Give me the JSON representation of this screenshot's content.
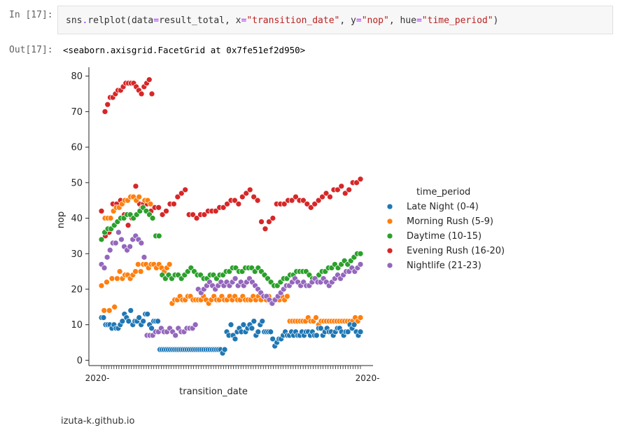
{
  "notebook": {
    "in_prompt": "In [17]:",
    "out_prompt": "Out[17]:",
    "code": {
      "fn_module": "sns",
      "fn_dot": ".",
      "fn_name": "relplot",
      "open_paren": "(",
      "arg1_name": "data",
      "eq": "=",
      "arg1_value": "result_total",
      "comma": ", ",
      "arg2_name": "x",
      "arg2_value": "\"transition_date\"",
      "arg3_name": "y",
      "arg3_value": "\"nop\"",
      "arg4_name": "hue",
      "arg4_value": "\"time_period\"",
      "close_paren": ")"
    },
    "output_text": "<seaborn.axisgrid.FacetGrid at 0x7fe51ef2d950>"
  },
  "attribution": "izuta-k.github.io",
  "chart_data": {
    "type": "scatter",
    "title": "",
    "xlabel": "transition_date",
    "ylabel": "nop",
    "ylim": [
      -1.5,
      82.5
    ],
    "yticks": [
      0,
      10,
      20,
      30,
      40,
      50,
      60,
      70,
      80
    ],
    "x_tick_label_left": "2020-",
    "x_tick_label_right": "2020-",
    "x_ticks_count": 105,
    "grid": false,
    "legend": {
      "title": "time_period",
      "placement": "right"
    },
    "series": [
      {
        "name": "Late Night (0-4)",
        "color": "#1f77b4",
        "values": [
          12,
          12,
          10,
          10,
          10,
          9,
          10,
          9,
          9,
          10,
          11,
          13,
          12,
          11,
          14,
          10,
          11,
          11,
          12,
          10,
          11,
          13,
          13,
          10,
          9,
          11,
          11,
          11,
          3,
          3,
          3,
          3,
          3,
          3,
          3,
          3,
          3,
          3,
          3,
          3,
          3,
          3,
          3,
          3,
          3,
          3,
          3,
          3,
          3,
          3,
          3,
          3,
          3,
          3,
          3,
          3,
          3,
          3,
          2,
          3,
          8,
          7,
          10,
          7,
          6,
          8,
          9,
          8,
          10,
          8,
          9,
          10,
          9,
          11,
          7,
          8,
          10,
          11,
          8,
          8,
          8,
          8,
          6,
          4,
          5,
          6,
          6,
          7,
          8,
          7,
          7,
          8,
          7,
          8,
          7,
          7,
          8,
          7,
          8,
          8,
          7,
          8,
          7,
          7,
          9,
          9,
          7,
          8,
          9,
          8,
          8,
          7,
          8,
          9,
          9,
          8,
          7,
          8,
          8,
          10,
          9,
          10,
          8,
          7,
          8
        ]
      },
      {
        "name": "Morning Rush (5-9)",
        "color": "#ff7f0e",
        "values": [
          21,
          14,
          22,
          14,
          23,
          15,
          23,
          25,
          23,
          24,
          24,
          23,
          24,
          25,
          27,
          25,
          27,
          27,
          26,
          27,
          27,
          26,
          27,
          26,
          25,
          26,
          27,
          16,
          17,
          17,
          18,
          17,
          17,
          18,
          18,
          17,
          17,
          17,
          17,
          18,
          17,
          16,
          17,
          18,
          17,
          17,
          18,
          17,
          17,
          18,
          17,
          18,
          17,
          17,
          18,
          17,
          17,
          17,
          18,
          17,
          18,
          17,
          18,
          17,
          18,
          16,
          17,
          17,
          17,
          18,
          17,
          18,
          11,
          11,
          11,
          11,
          11,
          11,
          11,
          12,
          11,
          11,
          12,
          10,
          11,
          11,
          11,
          11,
          11,
          11,
          11,
          11,
          11,
          11,
          11,
          11,
          11,
          12,
          11,
          12
        ],
        "series2": [
          40,
          40,
          40,
          42,
          43,
          43,
          44,
          45,
          45,
          46,
          46,
          45,
          46,
          43,
          45,
          45,
          44
        ]
      },
      {
        "name": "Daytime (10-15)",
        "color": "#2ca02c",
        "values": [
          34,
          36,
          37,
          37,
          38,
          39,
          40,
          40,
          41,
          41,
          40,
          41,
          42,
          43,
          42,
          41,
          40,
          35,
          35,
          24,
          23,
          24,
          23,
          24,
          24,
          23,
          24,
          25,
          26,
          25,
          24,
          24,
          23,
          23,
          24,
          24,
          23,
          24,
          24,
          25,
          25,
          26,
          26,
          25,
          25,
          26,
          26,
          26,
          25,
          26,
          25,
          24,
          23,
          22,
          21,
          21,
          22,
          23,
          23,
          24,
          24,
          25,
          25,
          25,
          25,
          24,
          23,
          23,
          24,
          25,
          25,
          26,
          26,
          27,
          26,
          27,
          28,
          27,
          28,
          29,
          30,
          30
        ]
      },
      {
        "name": "Evening Rush (16-20)",
        "color": "#d62728",
        "values": [
          42,
          35,
          36,
          44,
          44,
          45,
          41,
          38,
          40,
          49,
          44,
          44,
          44,
          42,
          43,
          43,
          41,
          42,
          44,
          44,
          46,
          47,
          48,
          41,
          41,
          40,
          41,
          41,
          42,
          42,
          42,
          43,
          43,
          44,
          45,
          45,
          44,
          46,
          47,
          48,
          46,
          45,
          39,
          37,
          39,
          40,
          44,
          44,
          44,
          45,
          45,
          46,
          45,
          45,
          44,
          43,
          44,
          45,
          46,
          47,
          46,
          48,
          48,
          49,
          47,
          48,
          50,
          50,
          51
        ]
      },
      {
        "name": "Nightlife (21-23)",
        "color": "#9467bd",
        "values": [
          27,
          26,
          29,
          31,
          33,
          33,
          36,
          34,
          32,
          31,
          32,
          34,
          35,
          34,
          33,
          29,
          7,
          7,
          7,
          8,
          8,
          9,
          8,
          8,
          9,
          8,
          7,
          9,
          8,
          8,
          9,
          9,
          9,
          10,
          20,
          19,
          20,
          21,
          22,
          21,
          20,
          21,
          22,
          21,
          22,
          21,
          22,
          23,
          21,
          22,
          21,
          22,
          23,
          22,
          21,
          20,
          19,
          18,
          18,
          17,
          16,
          17,
          18,
          19,
          20,
          21,
          21,
          22,
          23,
          22,
          21,
          22,
          21,
          21,
          22,
          23,
          22,
          22,
          23,
          22,
          21,
          22,
          23,
          24,
          23,
          24,
          25,
          25,
          26,
          25,
          26,
          27
        ]
      }
    ],
    "evening_high_cluster": [
      70,
      72,
      74,
      74,
      75,
      76,
      76,
      77,
      78,
      78,
      78,
      78,
      77,
      76,
      75,
      77,
      78,
      79,
      75
    ]
  }
}
